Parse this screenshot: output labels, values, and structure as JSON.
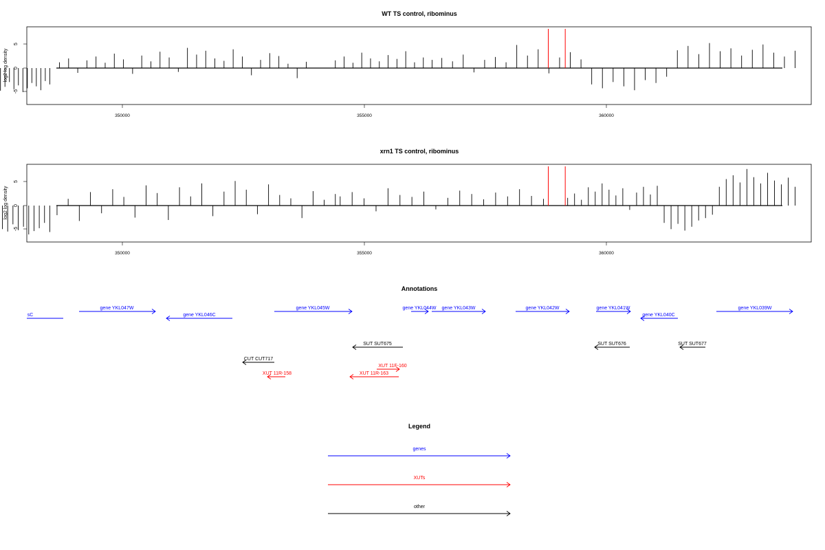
{
  "chart_data": [
    {
      "type": "bar",
      "title": "WT TS control, ribominus",
      "xlabel": "",
      "ylabel": "log2 log density",
      "x_ticks": [
        350000,
        355000,
        360000
      ],
      "y_ticks": [
        -5,
        0,
        5
      ],
      "xlim": [
        344000,
        364300
      ],
      "ylim": [
        -7.5,
        8.5
      ],
      "grid": false,
      "series": [
        {
          "values_description_segments": [
            {
              "x_start": 344000,
              "x_end": 344150,
              "values": [
                -2.5
              ]
            },
            {
              "x_start": 344420,
              "x_end": 345970,
              "values": [
                2.2,
                2.4,
                3.1,
                1.8,
                2.6,
                3.4,
                2.9,
                1.5,
                4.1,
                3.3,
                2.0,
                3.6,
                2.8,
                4.4,
                3.0,
                2.2,
                1.7,
                3.9,
                2.5,
                3.2,
                5.6,
                2.1,
                1.3,
                2.7,
                3.5,
                1.9,
                4.2,
                2.4,
                3.8,
                2.9
              ]
            },
            {
              "x_start": 346000,
              "x_end": 348500,
              "values": [
                -2.8,
                -4.1,
                -3.5,
                -4.8,
                -3.9,
                -2.6,
                -4.5,
                -5.1,
                -3.7,
                -4.3,
                -3.2,
                -4.9,
                -3.6,
                -5.4,
                -4.0,
                -3.3,
                -4.7,
                -3.9,
                -2.9,
                -4.4,
                -3.6,
                -5.0,
                -4.2,
                -3.1,
                -3.8,
                -4.6,
                -2.7,
                -3.4
              ]
            },
            {
              "x_start": 348700,
              "x_end": 353800,
              "values": [
                1.2,
                2.0,
                -1.0,
                1.6,
                2.4,
                1.1,
                3.0,
                1.8,
                -1.2,
                2.6,
                1.4,
                3.4,
                2.2,
                -0.8,
                4.2,
                2.8,
                3.6,
                2.0,
                1.5,
                3.9,
                2.4,
                -1.5,
                1.7,
                3.1,
                2.5,
                0.9,
                -2.1,
                1.3
              ]
            },
            {
              "x_start": 354400,
              "x_end": 356400,
              "values": [
                1.6,
                2.4,
                1.1,
                3.2,
                2.0,
                1.4,
                2.7,
                1.9,
                3.5,
                1.2,
                2.2,
                1.7
              ]
            },
            {
              "x_start": 356600,
              "x_end": 363900,
              "values": [
                2.1,
                1.4,
                2.8,
                -0.9,
                1.7,
                2.3,
                1.2,
                4.8,
                2.6,
                3.9,
                -1.1,
                2.2,
                3.3,
                1.8,
                -3.4,
                -4.2,
                -2.9,
                -3.8,
                -4.6,
                -2.5,
                -3.1,
                -1.8,
                3.7,
                4.6,
                2.9,
                5.2,
                3.5,
                4.1,
                2.6,
                3.8,
                4.9,
                3.2,
                2.4,
                3.6
              ]
            }
          ]
        }
      ],
      "highlights": [
        {
          "x": 358800,
          "color": "#ff0000"
        },
        {
          "x": 359150,
          "color": "#ff0000"
        }
      ]
    },
    {
      "type": "bar",
      "title": "xrn1 TS control, ribominus",
      "xlabel": "",
      "ylabel": "log2 log density",
      "x_ticks": [
        350000,
        355000,
        360000
      ],
      "y_ticks": [
        -5,
        0,
        5
      ],
      "xlim": [
        344000,
        364300
      ],
      "ylim": [
        -7.5,
        8.5
      ],
      "grid": false,
      "series": [
        {
          "values_description_segments": [
            {
              "x_start": 344000,
              "x_end": 344250,
              "values": [
                -2.6,
                -2.8,
                -1.9
              ]
            },
            {
              "x_start": 344430,
              "x_end": 345970,
              "values": [
                2.3,
                3.1,
                4.4,
                2.8,
                5.2,
                3.6,
                4.8,
                2.5,
                5.7,
                3.9,
                4.5,
                2.9,
                6.0,
                3.4,
                4.6,
                7.1,
                3.8,
                5.0,
                2.7,
                4.2,
                3.1
              ]
            },
            {
              "x_start": 346000,
              "x_end": 348500,
              "values": [
                -3.5,
                -4.8,
                -5.9,
                -4.2,
                -6.1,
                -5.0,
                -3.8,
                -5.6,
                -4.6,
                -6.4,
                -5.2,
                -4.1,
                -5.8,
                -6.6,
                -4.9,
                -5.4,
                -3.9,
                -5.1,
                -4.4,
                -6.0,
                -5.3,
                -4.7,
                -3.6,
                -5.5
              ]
            },
            {
              "x_start": 348650,
              "x_end": 354400,
              "values": [
                -2.0,
                1.4,
                -3.2,
                2.8,
                -1.6,
                3.4,
                1.8,
                -2.5,
                4.2,
                2.6,
                -3.0,
                3.8,
                1.9,
                4.6,
                -2.2,
                2.9,
                5.1,
                3.3,
                -1.8,
                4.4,
                2.2,
                1.5,
                -2.6,
                3.0,
                1.2,
                2.4
              ]
            },
            {
              "x_start": 354500,
              "x_end": 358700,
              "values": [
                1.9,
                2.8,
                1.5,
                -1.2,
                3.6,
                2.2,
                1.8,
                2.9,
                -0.8,
                1.6,
                3.1,
                2.4,
                1.3,
                2.7,
                1.9,
                3.4,
                2.0,
                1.4
              ]
            },
            {
              "x_start": 359200,
              "x_end": 363900,
              "values": [
                1.6,
                2.5,
                1.2,
                3.8,
                2.9,
                4.6,
                3.3,
                2.1,
                3.6,
                -0.9,
                2.7,
                3.9,
                2.3,
                4.1,
                -3.6,
                -4.9,
                -3.8,
                -5.2,
                -4.4,
                -3.1,
                -2.6,
                -1.9,
                3.9,
                5.5,
                6.3,
                4.8,
                7.6,
                5.9,
                4.6,
                6.8,
                5.2,
                4.4,
                5.8,
                3.9
              ]
            }
          ]
        }
      ],
      "highlights": [
        {
          "x": 358800,
          "color": "#ff0000"
        },
        {
          "x": 359150,
          "color": "#ff0000"
        }
      ]
    }
  ],
  "x_tick_labels": [
    "350000",
    "355000",
    "360000"
  ],
  "y_tick_labels": [
    "-5",
    "0",
    "5"
  ],
  "annotations_title": "Annotations",
  "annotations": [
    {
      "label": "sC",
      "color": "#0000ff"
    },
    {
      "label": "gene YKL047W",
      "color": "#0000ff"
    },
    {
      "label": "gene YKL046C",
      "color": "#0000ff"
    },
    {
      "label": "gene YKL045W",
      "color": "#0000ff"
    },
    {
      "label": "gene YKL044W",
      "color": "#0000ff"
    },
    {
      "label": "gene YKL043W",
      "color": "#0000ff"
    },
    {
      "label": "gene YKL042W",
      "color": "#0000ff"
    },
    {
      "label": "gene YKL041W",
      "color": "#0000ff"
    },
    {
      "label": "gene YKL040C",
      "color": "#0000ff"
    },
    {
      "label": "gene YKL039W",
      "color": "#0000ff"
    },
    {
      "label": "SUT SUT675",
      "color": "#000000"
    },
    {
      "label": "SUT SUT676",
      "color": "#000000"
    },
    {
      "label": "SUT SUT677",
      "color": "#000000"
    },
    {
      "label": "CUT CUT717",
      "color": "#000000"
    },
    {
      "label": "XUT 11F-160",
      "color": "#ff0000"
    },
    {
      "label": "XUT 11R-158",
      "color": "#ff0000"
    },
    {
      "label": "XUT 11R-163",
      "color": "#ff0000"
    }
  ],
  "legend_title": "Legend",
  "legend": [
    {
      "label": "genes",
      "color": "#0000ff"
    },
    {
      "label": "XUTs",
      "color": "#ff0000"
    },
    {
      "label": "other",
      "color": "#000000"
    }
  ]
}
